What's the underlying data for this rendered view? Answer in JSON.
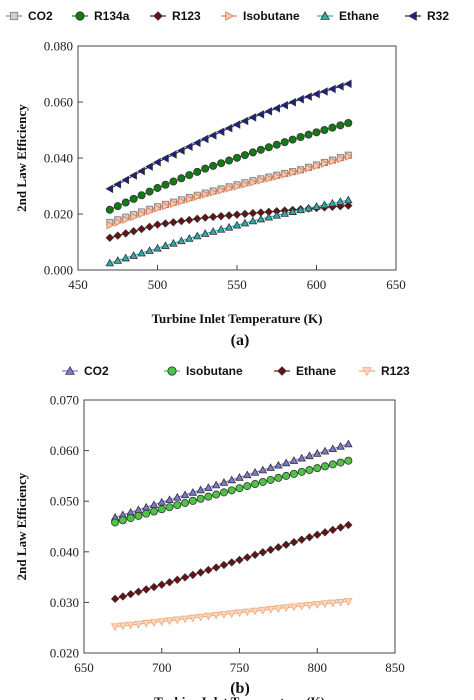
{
  "chart_data": [
    {
      "type": "line",
      "caption": "(a)",
      "xlabel": "Turbine Inlet Temperature (K)",
      "ylabel": "2nd Law Efficiency",
      "xlim": [
        450,
        650
      ],
      "ylim": [
        0.0,
        0.08
      ],
      "xticks": [
        "450",
        "500",
        "550",
        "600",
        "650"
      ],
      "yticks": [
        "0.000",
        "0.020",
        "0.040",
        "0.060",
        "0.080"
      ],
      "legend": "top",
      "x": [
        470,
        500,
        530,
        560,
        590,
        620
      ],
      "series": [
        {
          "name": "CO2",
          "marker": "square",
          "color": "#8a8a8a",
          "values": [
            0.017,
            0.0226,
            0.0275,
            0.0319,
            0.0358,
            0.041
          ]
        },
        {
          "name": "R134a",
          "marker": "circle",
          "color": "#127a12",
          "values": [
            0.0215,
            0.0293,
            0.0362,
            0.042,
            0.0475,
            0.0525
          ]
        },
        {
          "name": "R123",
          "marker": "diamond",
          "color": "#6b0f0f",
          "values": [
            0.0115,
            0.0162,
            0.0187,
            0.0203,
            0.0217,
            0.023
          ]
        },
        {
          "name": "Isobutane",
          "marker": "triangle-right",
          "color": "#e07b4a",
          "values": [
            0.016,
            0.022,
            0.027,
            0.0313,
            0.0355,
            0.0405
          ]
        },
        {
          "name": "Ethane",
          "marker": "triangle-up",
          "color": "#2eaaa8",
          "values": [
            0.0025,
            0.0078,
            0.013,
            0.0175,
            0.0215,
            0.025
          ]
        },
        {
          "name": "R32",
          "marker": "triangle-left",
          "color": "#1a1f8a",
          "values": [
            0.029,
            0.0385,
            0.0468,
            0.0545,
            0.061,
            0.0665
          ]
        }
      ]
    },
    {
      "type": "line",
      "caption": "(b)",
      "xlabel": "Turbine Inlet Temperature (K)",
      "ylabel": "2nd Law Efficiency",
      "xlim": [
        650,
        850
      ],
      "ylim": [
        0.02,
        0.07
      ],
      "xticks": [
        "650",
        "700",
        "750",
        "800",
        "850"
      ],
      "yticks": [
        "0.020",
        "0.030",
        "0.040",
        "0.050",
        "0.060",
        "0.070"
      ],
      "legend": "top",
      "x": [
        670,
        700,
        730,
        760,
        790,
        820
      ],
      "series": [
        {
          "name": "CO2",
          "marker": "triangle-up",
          "color": "#7a78cf",
          "values": [
            0.0468,
            0.0498,
            0.0527,
            0.0557,
            0.0585,
            0.0613
          ]
        },
        {
          "name": "Isobutane",
          "marker": "circle",
          "color": "#4cc444",
          "values": [
            0.0458,
            0.0484,
            0.0509,
            0.0534,
            0.0558,
            0.058
          ]
        },
        {
          "name": "Ethane",
          "marker": "diamond",
          "color": "#6b0f0f",
          "values": [
            0.0307,
            0.0335,
            0.0364,
            0.0394,
            0.0424,
            0.0453
          ]
        },
        {
          "name": "R123",
          "marker": "triangle-down",
          "color": "#f0a878",
          "values": [
            0.0252,
            0.0262,
            0.0273,
            0.0283,
            0.0293,
            0.0302
          ]
        }
      ]
    }
  ]
}
